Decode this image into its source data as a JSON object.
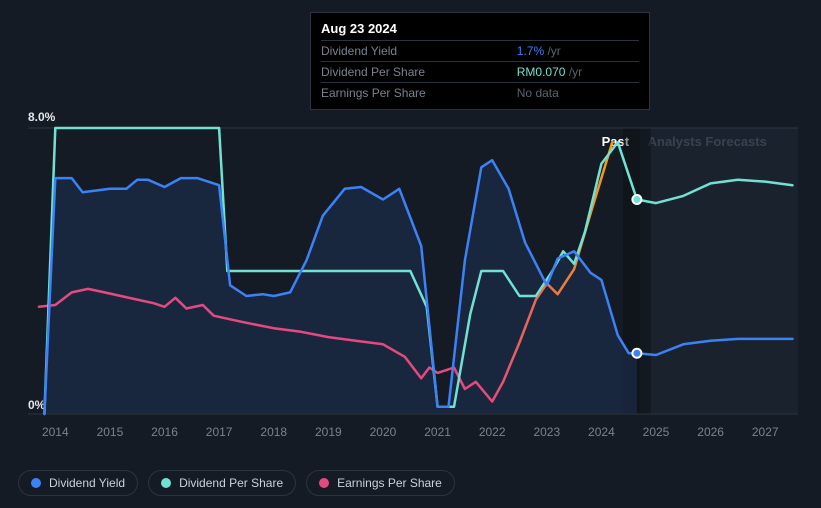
{
  "background_color": "#151b24",
  "grid_color": "#2a3441",
  "forecast_region": {
    "x_start": 2024.7,
    "fill": "#1d2835",
    "opacity": 0.55
  },
  "vertical_marker": {
    "x": 2024.65,
    "stroke": "#0b0f15",
    "width": 28,
    "opacity": 0.45
  },
  "y_axis": {
    "min": 0,
    "max": 8.0,
    "ticks": [
      {
        "v": 0,
        "label": "0%"
      },
      {
        "v": 8,
        "label": "8.0%"
      }
    ],
    "label_color": "#e5e7eb",
    "label_fontsize": 12
  },
  "x_axis": {
    "min": 2013.5,
    "max": 2027.6,
    "ticks": [
      2014,
      2015,
      2016,
      2017,
      2018,
      2019,
      2020,
      2021,
      2022,
      2023,
      2024,
      2025,
      2026,
      2027
    ],
    "label_color": "#7a8290",
    "label_fontsize": 12
  },
  "series": {
    "dividend_yield": {
      "name": "Dividend Yield",
      "color": "#3b82f6",
      "width": 2.5,
      "area_fill": "#1d3154",
      "area_opacity": 0.55,
      "points": [
        [
          2013.8,
          0
        ],
        [
          2014.0,
          6.6
        ],
        [
          2014.3,
          6.6
        ],
        [
          2014.5,
          6.2
        ],
        [
          2015.0,
          6.3
        ],
        [
          2015.3,
          6.3
        ],
        [
          2015.5,
          6.55
        ],
        [
          2015.7,
          6.55
        ],
        [
          2016.0,
          6.35
        ],
        [
          2016.3,
          6.6
        ],
        [
          2016.6,
          6.6
        ],
        [
          2017.0,
          6.4
        ],
        [
          2017.2,
          3.6
        ],
        [
          2017.5,
          3.3
        ],
        [
          2017.8,
          3.35
        ],
        [
          2018.0,
          3.3
        ],
        [
          2018.3,
          3.4
        ],
        [
          2018.6,
          4.3
        ],
        [
          2018.9,
          5.55
        ],
        [
          2019.3,
          6.3
        ],
        [
          2019.6,
          6.35
        ],
        [
          2020.0,
          6.0
        ],
        [
          2020.3,
          6.3
        ],
        [
          2020.7,
          4.7
        ],
        [
          2021.0,
          0.2
        ],
        [
          2021.2,
          0.2
        ],
        [
          2021.5,
          4.3
        ],
        [
          2021.8,
          6.9
        ],
        [
          2022.0,
          7.1
        ],
        [
          2022.3,
          6.3
        ],
        [
          2022.6,
          4.8
        ],
        [
          2023.0,
          3.6
        ],
        [
          2023.2,
          4.35
        ],
        [
          2023.5,
          4.55
        ],
        [
          2023.8,
          3.95
        ],
        [
          2024.0,
          3.75
        ],
        [
          2024.3,
          2.2
        ],
        [
          2024.5,
          1.7
        ],
        [
          2024.65,
          1.7
        ]
      ],
      "forecast_points": [
        [
          2024.65,
          1.7
        ],
        [
          2025.0,
          1.65
        ],
        [
          2025.5,
          1.95
        ],
        [
          2026.0,
          2.05
        ],
        [
          2026.5,
          2.1
        ],
        [
          2027.0,
          2.1
        ],
        [
          2027.5,
          2.1
        ]
      ],
      "forecast_width": 2.5,
      "marker": {
        "x": 2024.65,
        "y": 1.7,
        "r": 4.5,
        "fill": "#3b82f6",
        "stroke": "#fff"
      }
    },
    "dividend_per_share": {
      "name": "Dividend Per Share",
      "color": "#71e2d2",
      "width": 2.5,
      "points": [
        [
          2013.8,
          0
        ],
        [
          2014.0,
          8.0
        ],
        [
          2014.3,
          8.0
        ],
        [
          2017.0,
          8.0
        ],
        [
          2017.15,
          4.0
        ],
        [
          2017.5,
          4.0
        ],
        [
          2020.5,
          4.0
        ],
        [
          2020.8,
          3.0
        ],
        [
          2021.0,
          0.2
        ],
        [
          2021.3,
          0.2
        ],
        [
          2021.6,
          2.8
        ],
        [
          2021.8,
          4.0
        ],
        [
          2022.2,
          4.0
        ],
        [
          2022.5,
          3.3
        ],
        [
          2022.8,
          3.3
        ],
        [
          2023.1,
          4.0
        ],
        [
          2023.3,
          4.55
        ],
        [
          2023.5,
          4.2
        ],
        [
          2023.7,
          5.1
        ],
        [
          2024.0,
          7.0
        ],
        [
          2024.3,
          7.6
        ],
        [
          2024.65,
          6.0
        ]
      ],
      "forecast_points": [
        [
          2024.65,
          6.0
        ],
        [
          2025.0,
          5.9
        ],
        [
          2025.5,
          6.1
        ],
        [
          2026.0,
          6.45
        ],
        [
          2026.5,
          6.55
        ],
        [
          2027.0,
          6.5
        ],
        [
          2027.5,
          6.4
        ]
      ],
      "marker": {
        "x": 2024.65,
        "y": 6.0,
        "r": 4.5,
        "fill": "#71e2d2",
        "stroke": "#fff"
      }
    },
    "earnings_per_share": {
      "name": "Earnings Per Share",
      "color": "#e64980",
      "gradient_end": "#f59e0b",
      "width": 2.5,
      "points": [
        [
          2013.7,
          3.0
        ],
        [
          2014.0,
          3.05
        ],
        [
          2014.3,
          3.4
        ],
        [
          2014.6,
          3.5
        ],
        [
          2014.9,
          3.4
        ],
        [
          2015.2,
          3.3
        ],
        [
          2015.5,
          3.2
        ],
        [
          2015.8,
          3.1
        ],
        [
          2016.0,
          3.0
        ],
        [
          2016.2,
          3.25
        ],
        [
          2016.4,
          2.95
        ],
        [
          2016.7,
          3.05
        ],
        [
          2016.9,
          2.75
        ],
        [
          2017.2,
          2.65
        ],
        [
          2017.5,
          2.55
        ],
        [
          2018.0,
          2.4
        ],
        [
          2018.5,
          2.3
        ],
        [
          2019.0,
          2.15
        ],
        [
          2019.5,
          2.05
        ],
        [
          2020.0,
          1.95
        ],
        [
          2020.4,
          1.6
        ],
        [
          2020.7,
          1.0
        ],
        [
          2020.85,
          1.3
        ],
        [
          2021.0,
          1.15
        ],
        [
          2021.3,
          1.3
        ],
        [
          2021.5,
          0.7
        ],
        [
          2021.7,
          0.9
        ],
        [
          2022.0,
          0.35
        ],
        [
          2022.2,
          0.9
        ],
        [
          2022.5,
          2.0
        ],
        [
          2022.8,
          3.2
        ],
        [
          2023.0,
          3.65
        ],
        [
          2023.2,
          3.35
        ],
        [
          2023.5,
          4.05
        ],
        [
          2023.8,
          5.6
        ],
        [
          2024.2,
          7.6
        ]
      ]
    }
  },
  "tooltip": {
    "date": "Aug 23 2024",
    "rows": [
      {
        "label": "Dividend Yield",
        "value": "1.7%",
        "suffix": "/yr",
        "value_color": "#3b82f6"
      },
      {
        "label": "Dividend Per Share",
        "value": "RM0.070",
        "suffix": "/yr",
        "value_color": "#71e2d2"
      },
      {
        "label": "Earnings Per Share",
        "value": "No data",
        "nodata": true
      }
    ]
  },
  "region_labels": {
    "past": "Past",
    "forecast": "Analysts Forecasts"
  },
  "legend": [
    {
      "label": "Dividend Yield",
      "color": "#3b82f6"
    },
    {
      "label": "Dividend Per Share",
      "color": "#71e2d2"
    },
    {
      "label": "Earnings Per Share",
      "color": "#e64980"
    }
  ]
}
